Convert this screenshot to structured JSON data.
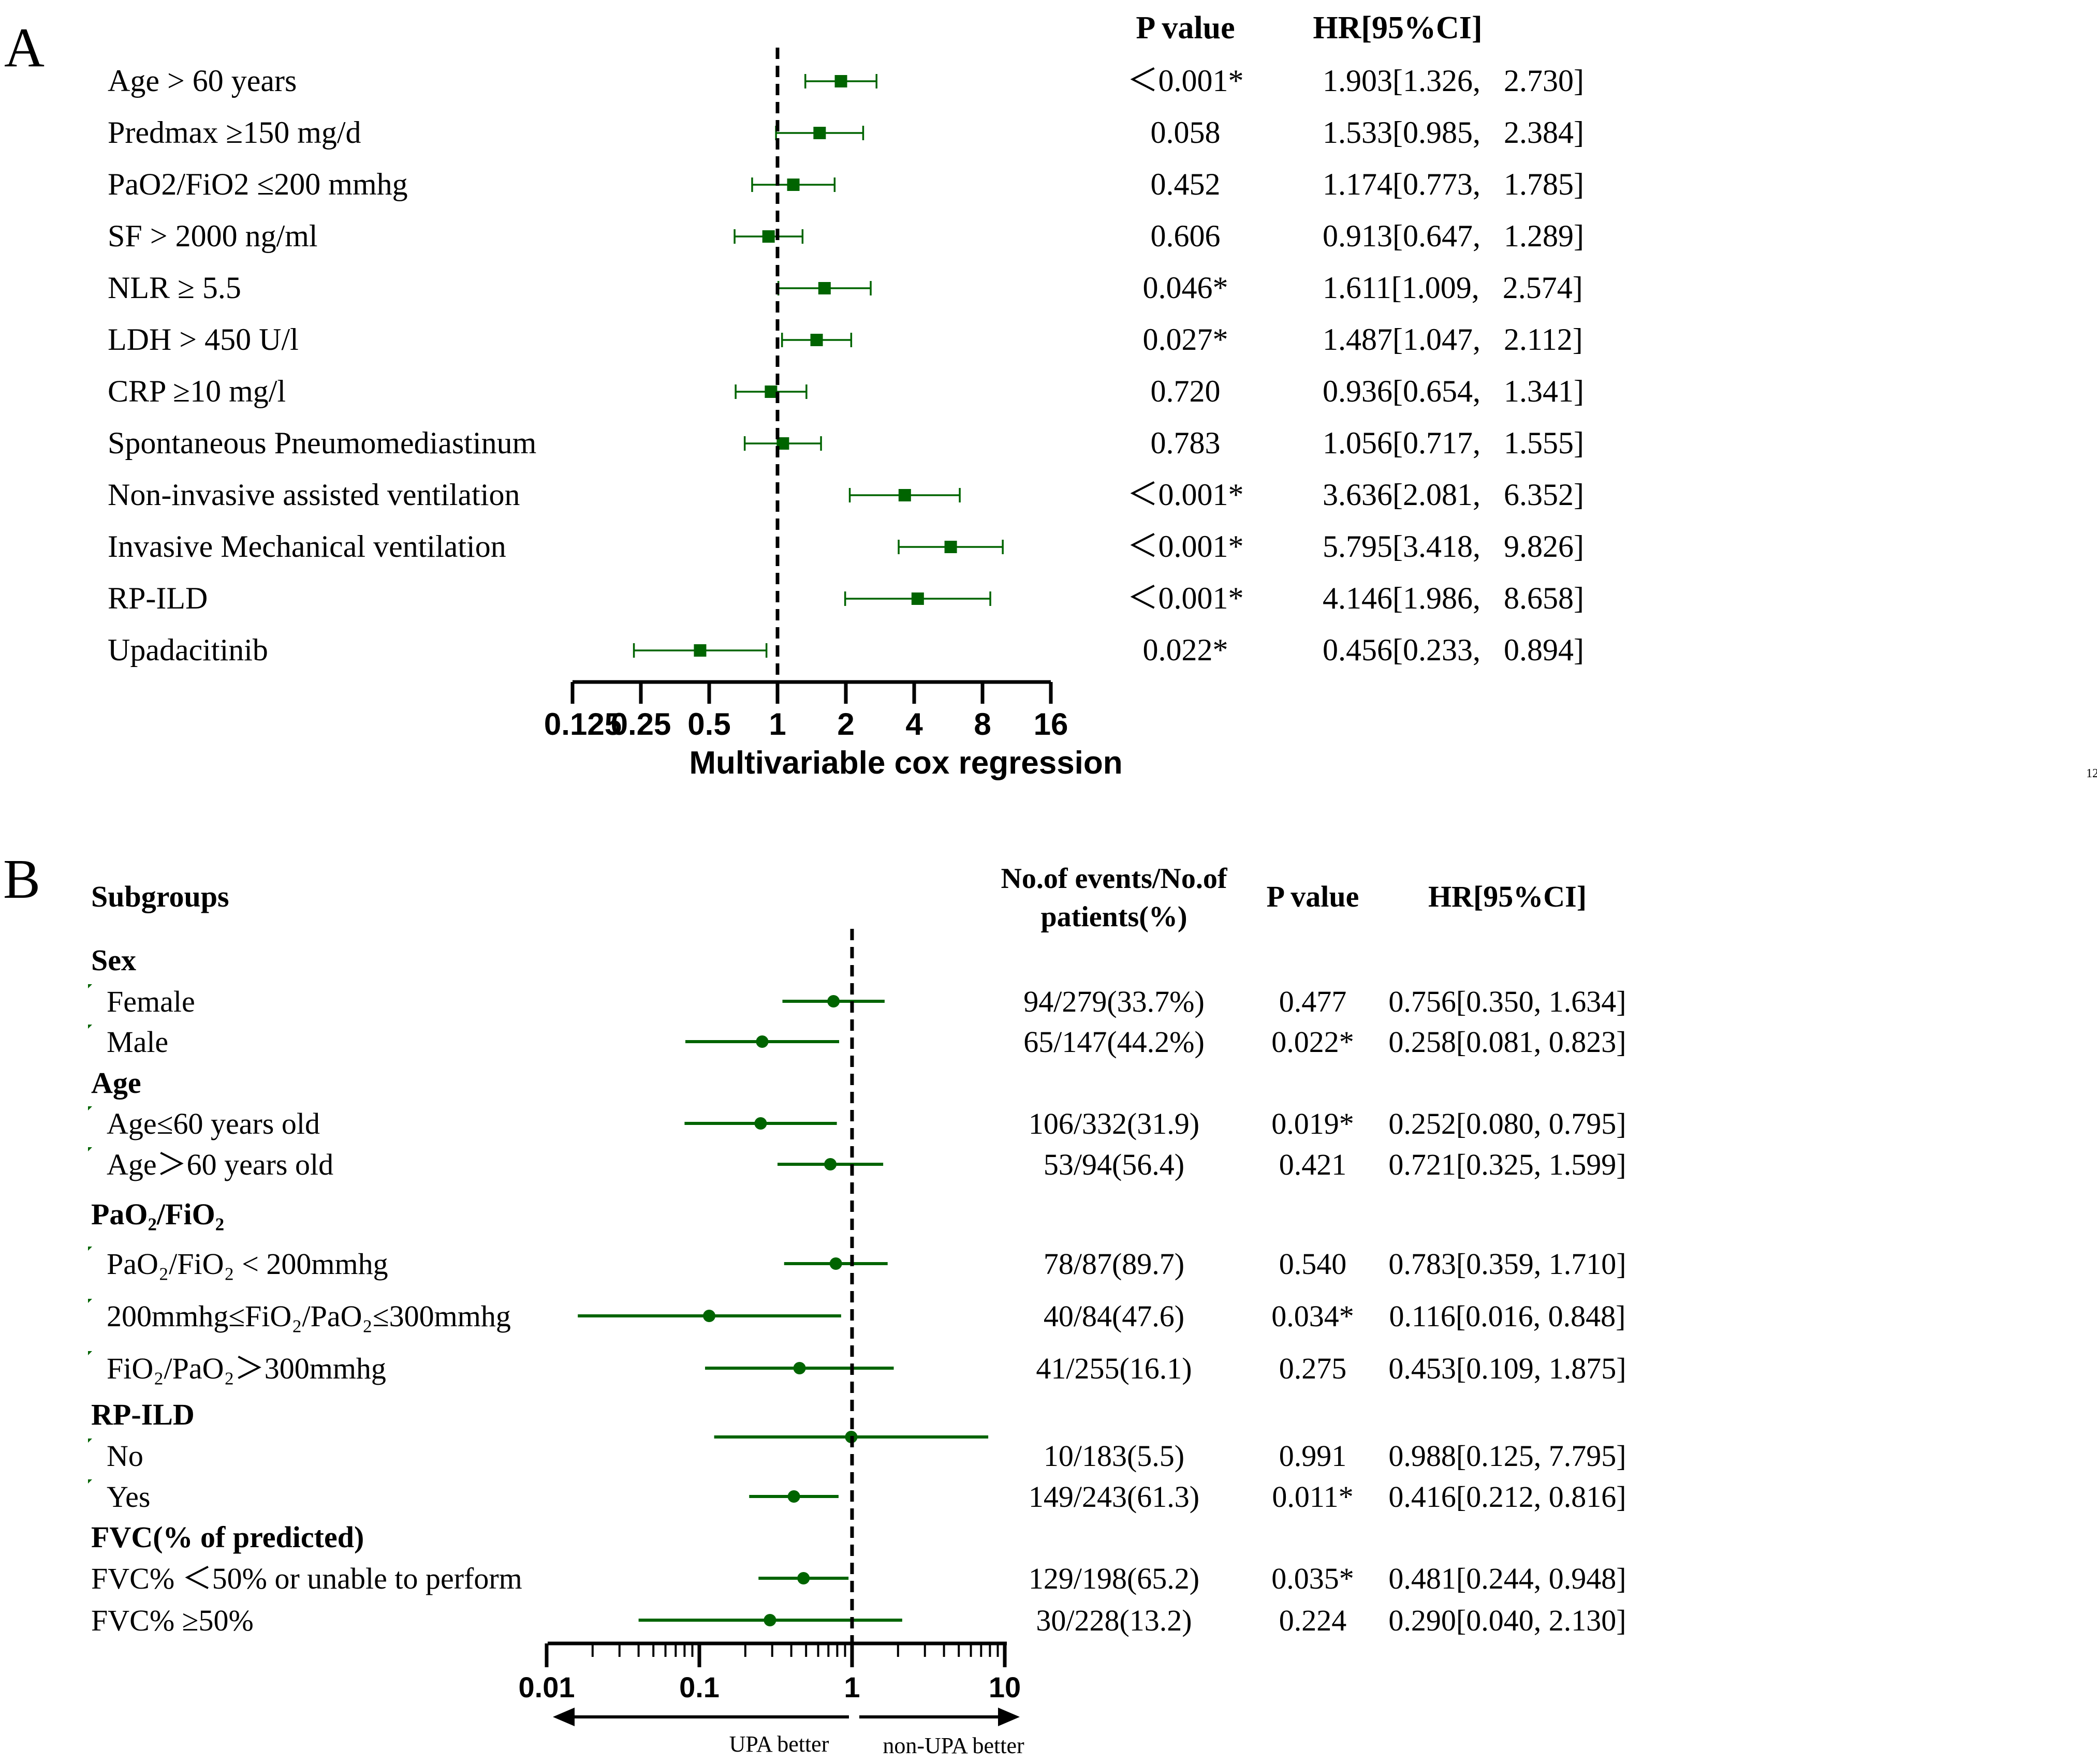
{
  "panel_a": {
    "label": "A",
    "header_pvalue": "P value",
    "header_hr": "HR[95%CI]",
    "xlabel": "Multivariable cox regression",
    "side_note": "12"
  },
  "panel_b": {
    "label": "B",
    "header_subgroups": "Subgroups",
    "header_events_1": "No.of events/No.of",
    "header_events_2": "patients(%)",
    "header_pvalue": "P value",
    "header_hr": "HR[95%CI]",
    "arrow_left": "UPA better",
    "arrow_right": "non-UPA better"
  },
  "colors": {
    "marker": "#006400",
    "text": "#000000"
  },
  "chart_data": [
    {
      "type": "forest",
      "title": "",
      "xlabel": "Multivariable cox regression",
      "x_scale": "log2",
      "xlim": [
        0.125,
        16
      ],
      "x_ticks": [
        0.125,
        0.25,
        0.5,
        1,
        2,
        4,
        8,
        16
      ],
      "x_tick_labels": [
        "0.125",
        "0.25",
        "0.5",
        "1",
        "2",
        "4",
        "8",
        "16"
      ],
      "reference_line": 1,
      "rows": [
        {
          "label": "Age > 60  years",
          "hr": 1.903,
          "lo": 1.326,
          "hi": 2.73,
          "p": "＜0.001*",
          "hr_text": "1.903[1.326,   2.730]"
        },
        {
          "label": "Predmax ≥150 mg/d",
          "hr": 1.533,
          "lo": 0.985,
          "hi": 2.384,
          "p": "0.058",
          "hr_text": "1.533[0.985,   2.384]"
        },
        {
          "label": "PaO2/FiO2 ≤200  mmhg",
          "hr": 1.174,
          "lo": 0.773,
          "hi": 1.785,
          "p": "0.452",
          "hr_text": "1.174[0.773,   1.785]"
        },
        {
          "label": "SF > 2000  ng/ml",
          "hr": 0.913,
          "lo": 0.647,
          "hi": 1.289,
          "p": "0.606",
          "hr_text": "0.913[0.647,   1.289]"
        },
        {
          "label": "NLR ≥ 5.5",
          "hr": 1.611,
          "lo": 1.009,
          "hi": 2.574,
          "p": "0.046*",
          "hr_text": "1.611[1.009,   2.574]"
        },
        {
          "label": "LDH > 450  U/l",
          "hr": 1.487,
          "lo": 1.047,
          "hi": 2.112,
          "p": "0.027*",
          "hr_text": "1.487[1.047,   2.112]"
        },
        {
          "label": "CRP ≥10 mg/l",
          "hr": 0.936,
          "lo": 0.654,
          "hi": 1.341,
          "p": "0.720",
          "hr_text": "0.936[0.654,   1.341]"
        },
        {
          "label": "Spontaneous   Pneumomediastinum",
          "hr": 1.056,
          "lo": 0.717,
          "hi": 1.555,
          "p": "0.783",
          "hr_text": "1.056[0.717,   1.555]"
        },
        {
          "label": "Non-invasive  assisted   ventilation",
          "hr": 3.636,
          "lo": 2.081,
          "hi": 6.352,
          "p": "＜0.001*",
          "hr_text": "3.636[2.081,   6.352]"
        },
        {
          "label": "Invasive  Mechanical   ventilation",
          "hr": 5.795,
          "lo": 3.418,
          "hi": 9.826,
          "p": "＜0.001*",
          "hr_text": "5.795[3.418,   9.826]"
        },
        {
          "label": "RP-ILD",
          "hr": 4.146,
          "lo": 1.986,
          "hi": 8.658,
          "p": "＜0.001*",
          "hr_text": "4.146[1.986,   8.658]"
        },
        {
          "label": "Upadacitinib",
          "hr": 0.456,
          "lo": 0.233,
          "hi": 0.894,
          "p": "0.022*",
          "hr_text": "0.456[0.233,   0.894]"
        }
      ]
    },
    {
      "type": "forest",
      "title": "",
      "x_scale": "log10",
      "xlim": [
        0.01,
        10
      ],
      "x_ticks": [
        0.01,
        0.1,
        1,
        10
      ],
      "x_tick_labels": [
        "0.01",
        "0.1",
        "1",
        "10"
      ],
      "reference_line": 1,
      "groups": [
        {
          "heading": "Sex",
          "rows": [
            {
              "label": "Female",
              "events": "94/279(33.7%)",
              "p": "0.477",
              "hr": 0.756,
              "lo": 0.35,
              "hi": 1.634,
              "hr_text": "0.756[0.350, 1.634]"
            },
            {
              "label": "Male",
              "events": "65/147(44.2%)",
              "p": "0.022*",
              "hr": 0.258,
              "lo": 0.081,
              "hi": 0.823,
              "hr_text": "0.258[0.081, 0.823]"
            }
          ]
        },
        {
          "heading": "Age",
          "rows": [
            {
              "label": "Age≤60 years old",
              "events": "106/332(31.9)",
              "p": "0.019*",
              "hr": 0.252,
              "lo": 0.08,
              "hi": 0.795,
              "hr_text": "0.252[0.080, 0.795]"
            },
            {
              "label": "Age＞60 years old",
              "events": "53/94(56.4)",
              "p": "0.421",
              "hr": 0.721,
              "lo": 0.325,
              "hi": 1.599,
              "hr_text": "0.721[0.325, 1.599]"
            }
          ]
        },
        {
          "heading": "PaO₂/FiO₂",
          "rows": [
            {
              "label": "PaO₂/FiO₂ < 200mmhg",
              "events": "78/87(89.7)",
              "p": "0.540",
              "hr": 0.783,
              "lo": 0.359,
              "hi": 1.71,
              "hr_text": "0.783[0.359, 1.710]"
            },
            {
              "label": "200mmhg≤FiO₂/PaO₂≤300mmhg",
              "events": "40/84(47.6)",
              "p": "0.034*",
              "hr": 0.116,
              "lo": 0.016,
              "hi": 0.848,
              "hr_text": "0.116[0.016, 0.848]"
            },
            {
              "label": "FiO₂/PaO₂＞300mmhg",
              "events": "41/255(16.1)",
              "p": "0.275",
              "hr": 0.453,
              "lo": 0.109,
              "hi": 1.875,
              "hr_text": "0.453[0.109, 1.875]"
            }
          ]
        },
        {
          "heading": "RP-ILD",
          "rows": [
            {
              "label": "No",
              "events": "10/183(5.5)",
              "p": "0.991",
              "hr": 0.988,
              "lo": 0.125,
              "hi": 7.795,
              "hr_text": "0.988[0.125, 7.795]"
            },
            {
              "label": "Yes",
              "events": "149/243(61.3)",
              "p": "0.011*",
              "hr": 0.416,
              "lo": 0.212,
              "hi": 0.816,
              "hr_text": "0.416[0.212, 0.816]"
            }
          ]
        },
        {
          "heading": "FVC(% of predicted)",
          "rows": [
            {
              "label": "FVC% ＜50% or unable to perform",
              "events": "129/198(65.2)",
              "p": "0.035*",
              "hr": 0.481,
              "lo": 0.244,
              "hi": 0.948,
              "hr_text": "0.481[0.244, 0.948]"
            },
            {
              "label": "FVC% ≥50%",
              "events": "30/228(13.2)",
              "p": "0.224",
              "hr": 0.29,
              "lo": 0.04,
              "hi": 2.13,
              "hr_text": "0.290[0.040, 2.130]"
            }
          ]
        }
      ]
    }
  ]
}
